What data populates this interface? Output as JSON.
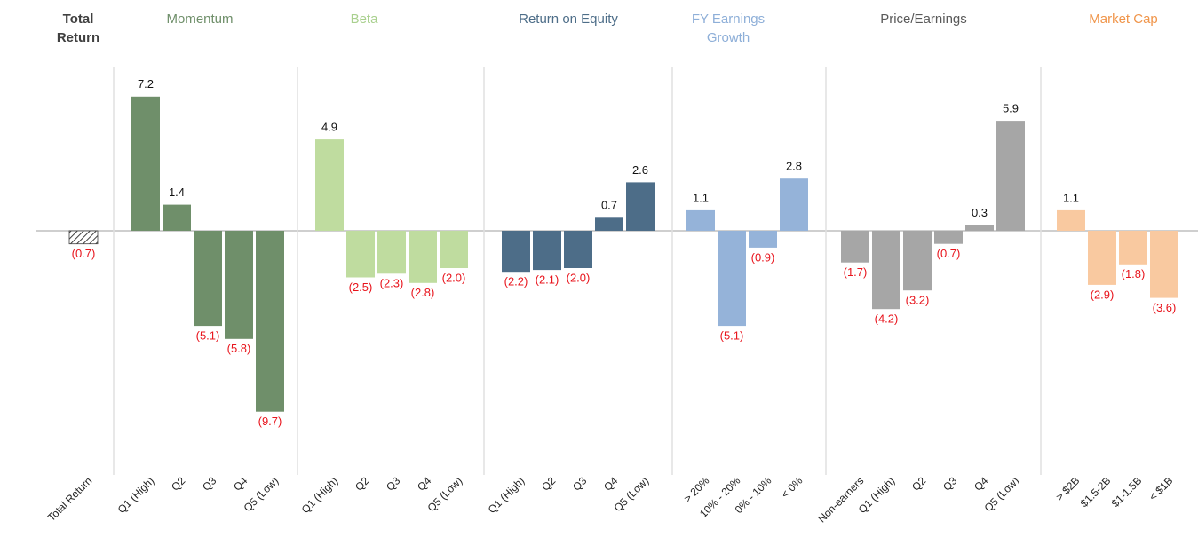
{
  "chart_data": {
    "type": "bar",
    "groups": [
      {
        "title": [
          "Total",
          "Return"
        ],
        "title_color": "#404040",
        "color": "#404040",
        "hatch": true,
        "categories": [
          "Total Return"
        ],
        "values": [
          -0.7
        ],
        "value_labels": [
          "(0.7)"
        ]
      },
      {
        "title": [
          "Momentum"
        ],
        "title_color": "#6f8f6a",
        "color": "#6f8f6a",
        "categories": [
          "Q1 (High)",
          "Q2",
          "Q3",
          "Q4",
          "Q5 (Low)"
        ],
        "values": [
          7.2,
          1.4,
          -5.1,
          -5.8,
          -9.7
        ],
        "value_labels": [
          "7.2",
          "1.4",
          "(5.1)",
          "(5.8)",
          "(9.7)"
        ]
      },
      {
        "title": [
          "Beta"
        ],
        "title_color": "#a9d08e",
        "color": "#bfdc9f",
        "categories": [
          "Q1 (High)",
          "Q2",
          "Q3",
          "Q4",
          "Q5 (Low)"
        ],
        "values": [
          4.9,
          -2.5,
          -2.3,
          -2.8,
          -2.0
        ],
        "value_labels": [
          "4.9",
          "(2.5)",
          "(2.3)",
          "(2.8)",
          "(2.0)"
        ]
      },
      {
        "title": [
          "Return on Equity"
        ],
        "title_color": "#4d6d88",
        "color": "#4d6d88",
        "categories": [
          "Q1 (High)",
          "Q2",
          "Q3",
          "Q4",
          "Q5 (Low)"
        ],
        "values": [
          -2.2,
          -2.1,
          -2.0,
          0.7,
          2.6
        ],
        "value_labels": [
          "(2.2)",
          "(2.1)",
          "(2.0)",
          "0.7",
          "2.6"
        ]
      },
      {
        "title": [
          "FY Earnings",
          "Growth"
        ],
        "title_color": "#8eafd8",
        "color": "#95b3d9",
        "categories": [
          "> 20%",
          "10% - 20%",
          "0% - 10%",
          "< 0%"
        ],
        "values": [
          1.1,
          -5.1,
          -0.9,
          2.8
        ],
        "value_labels": [
          "1.1",
          "(5.1)",
          "(0.9)",
          "2.8"
        ]
      },
      {
        "title": [
          "Price/Earnings"
        ],
        "title_color": "#595959",
        "color": "#a6a6a6",
        "categories": [
          "Non-earners",
          "Q1 (High)",
          "Q2",
          "Q3",
          "Q4",
          "Q5 (Low)"
        ],
        "values": [
          -1.7,
          -4.2,
          -3.2,
          -0.7,
          0.3,
          5.9
        ],
        "value_labels": [
          "(1.7)",
          "(4.2)",
          "(3.2)",
          "(0.7)",
          "0.3",
          "5.9"
        ]
      },
      {
        "title": [
          "Market Cap"
        ],
        "title_color": "#f0954a",
        "color": "#f9c9a0",
        "categories": [
          "> $2B",
          "$1.5-2B",
          "$1-1.5B",
          "< $1B"
        ],
        "values": [
          1.1,
          -2.9,
          -1.8,
          -3.6
        ],
        "value_labels": [
          "1.1",
          "(2.9)",
          "(1.8)",
          "(3.6)"
        ]
      }
    ]
  }
}
